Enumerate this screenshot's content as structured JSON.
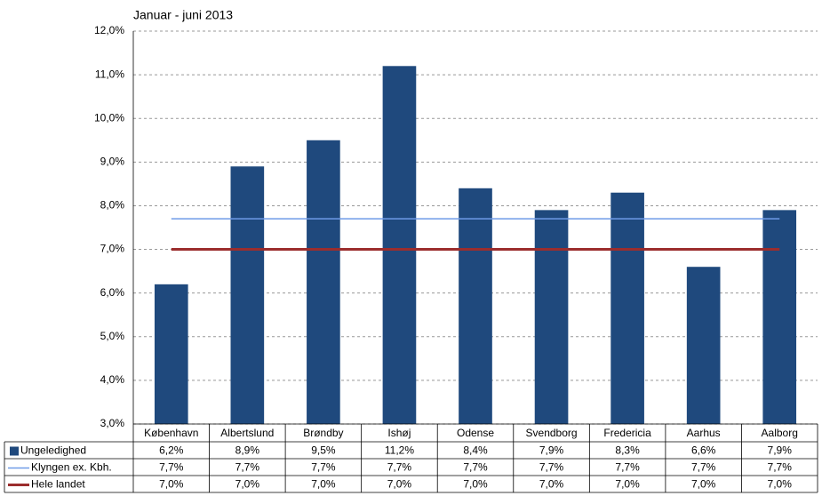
{
  "chart_data": {
    "type": "bar",
    "title": "Januar - juni 2013",
    "categories": [
      "København",
      "Albertslund",
      "Brøndby",
      "Ishøj",
      "Odense",
      "Svendborg",
      "Fredericia",
      "Aarhus",
      "Aalborg"
    ],
    "series": [
      {
        "name": "Ungeledighed",
        "type": "bar",
        "color": "#1f497d",
        "values": [
          6.2,
          8.9,
          9.5,
          11.2,
          8.4,
          7.9,
          8.3,
          6.6,
          7.9
        ],
        "value_labels": [
          "6,2%",
          "8,9%",
          "9,5%",
          "11,2%",
          "8,4%",
          "7,9%",
          "8,3%",
          "6,6%",
          "7,9%"
        ]
      },
      {
        "name": "Klyngen ex. Kbh.",
        "type": "line",
        "color": "#6f9be8",
        "values": [
          7.7,
          7.7,
          7.7,
          7.7,
          7.7,
          7.7,
          7.7,
          7.7,
          7.7
        ],
        "value_labels": [
          "7,7%",
          "7,7%",
          "7,7%",
          "7,7%",
          "7,7%",
          "7,7%",
          "7,7%",
          "7,7%",
          "7,7%"
        ]
      },
      {
        "name": "Hele landet",
        "type": "line",
        "color": "#9b2d2d",
        "values": [
          7.0,
          7.0,
          7.0,
          7.0,
          7.0,
          7.0,
          7.0,
          7.0,
          7.0
        ],
        "value_labels": [
          "7,0%",
          "7,0%",
          "7,0%",
          "7,0%",
          "7,0%",
          "7,0%",
          "7,0%",
          "7,0%",
          "7,0%"
        ]
      }
    ],
    "ylim": [
      3,
      12
    ],
    "yticks": [
      {
        "value": 3,
        "label": "3,0%"
      },
      {
        "value": 4,
        "label": "4,0%"
      },
      {
        "value": 5,
        "label": "5,0%"
      },
      {
        "value": 6,
        "label": "6,0%"
      },
      {
        "value": 7,
        "label": "7,0%"
      },
      {
        "value": 8,
        "label": "8,0%"
      },
      {
        "value": 9,
        "label": "9,0%"
      },
      {
        "value": 10,
        "label": "10,0%"
      },
      {
        "value": 11,
        "label": "11,0%"
      },
      {
        "value": 12,
        "label": "12,0%"
      }
    ],
    "grid": true
  }
}
